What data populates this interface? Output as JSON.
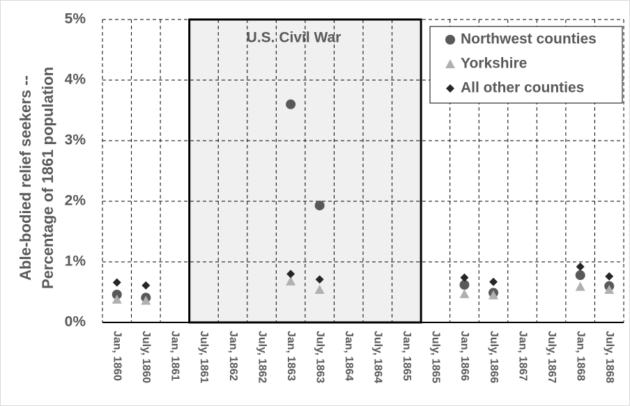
{
  "chart_data": {
    "type": "scatter",
    "ylabel": [
      "Able-bodied relief seekers --",
      "Percentage of 1861 population"
    ],
    "categories": [
      "Jan, 1860",
      "July, 1860",
      "Jan, 1861",
      "July, 1861",
      "Jan, 1862",
      "July, 1862",
      "Jan, 1863",
      "July, 1863",
      "Jan, 1864",
      "July, 1864",
      "Jan, 1865",
      "July, 1865",
      "Jan, 1866",
      "July, 1866",
      "Jan, 1867",
      "July, 1867",
      "Jan, 1868",
      "July, 1868"
    ],
    "series": [
      {
        "name": "Northwest counties",
        "color": "#595959",
        "marker": "circle",
        "values": [
          0.46,
          0.41,
          null,
          null,
          null,
          null,
          3.6,
          1.93,
          null,
          null,
          null,
          null,
          0.62,
          0.49,
          null,
          null,
          0.78,
          0.6
        ]
      },
      {
        "name": "Yorkshire",
        "color": "#b0b0b0",
        "marker": "triangle",
        "values": [
          0.38,
          0.36,
          null,
          null,
          null,
          null,
          0.68,
          0.54,
          null,
          null,
          null,
          null,
          0.47,
          0.45,
          null,
          null,
          0.59,
          0.54
        ]
      },
      {
        "name": "All other counties",
        "color": "#262626",
        "marker": "diamond",
        "values": [
          0.66,
          0.61,
          null,
          null,
          null,
          null,
          0.8,
          0.71,
          null,
          null,
          null,
          null,
          0.74,
          0.67,
          null,
          null,
          0.92,
          0.76
        ]
      }
    ],
    "ylim": [
      0,
      5
    ],
    "yticks": [
      {
        "value": 0,
        "label": "0%"
      },
      {
        "value": 1,
        "label": "1%"
      },
      {
        "value": 2,
        "label": "2%"
      },
      {
        "value": 3,
        "label": "3%"
      },
      {
        "value": 4,
        "label": "4%"
      },
      {
        "value": 5,
        "label": "5%"
      }
    ],
    "grid": true,
    "legend": "top-right",
    "shaded_span": {
      "label": "U.S. Civil War",
      "from": "July, 1861",
      "to": "Jan, 1865"
    }
  }
}
